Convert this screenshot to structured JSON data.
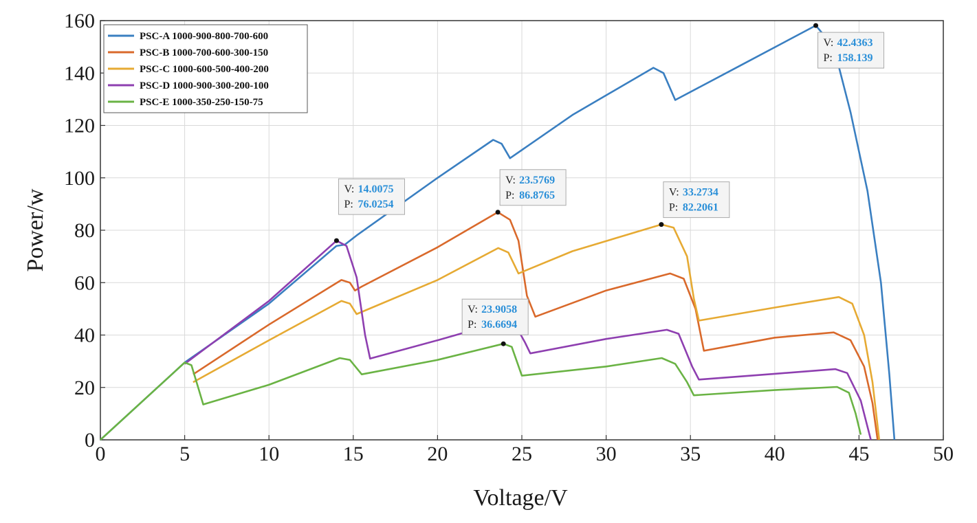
{
  "chart_data": {
    "type": "line",
    "xlabel": "Voltage/V",
    "ylabel": "Power/w",
    "xlim": [
      0,
      50
    ],
    "ylim": [
      0,
      160
    ],
    "xticks": [
      0,
      5,
      10,
      15,
      20,
      25,
      30,
      35,
      40,
      45,
      50
    ],
    "yticks": [
      0,
      20,
      40,
      60,
      80,
      100,
      120,
      140,
      160
    ],
    "grid": true,
    "legend_position": "top-left",
    "series": [
      {
        "name": "PSC-A 1000-900-800-700-600",
        "color": "#3a7fc1",
        "points": [
          [
            0,
            0
          ],
          [
            5,
            29.5
          ],
          [
            10,
            52
          ],
          [
            14,
            74
          ],
          [
            14.5,
            74.5
          ],
          [
            15.2,
            78
          ],
          [
            20,
            100
          ],
          [
            23.3,
            114.5
          ],
          [
            23.8,
            113
          ],
          [
            24.3,
            107.5
          ],
          [
            28,
            124
          ],
          [
            32.8,
            142
          ],
          [
            33.4,
            140
          ],
          [
            34.1,
            129.7
          ],
          [
            38,
            143
          ],
          [
            42.4363,
            158.139
          ],
          [
            43.5,
            150
          ],
          [
            44.5,
            125
          ],
          [
            45.5,
            95
          ],
          [
            46.3,
            60
          ],
          [
            46.8,
            25
          ],
          [
            47.1,
            0
          ]
        ]
      },
      {
        "name": "PSC-B 1000-700-600-300-150",
        "color": "#d9692b",
        "points": [
          [
            5.5,
            25
          ],
          [
            10,
            44
          ],
          [
            14.3,
            61
          ],
          [
            14.8,
            60
          ],
          [
            15.1,
            57
          ],
          [
            15.5,
            58.5
          ],
          [
            20,
            73.5
          ],
          [
            23.5769,
            86.8765
          ],
          [
            24.3,
            84
          ],
          [
            24.8,
            76
          ],
          [
            25.3,
            55
          ],
          [
            25.8,
            47
          ],
          [
            30,
            57
          ],
          [
            33.8,
            63.5
          ],
          [
            34.6,
            61.5
          ],
          [
            35.3,
            50
          ],
          [
            35.8,
            34
          ],
          [
            40,
            39
          ],
          [
            43.5,
            41
          ],
          [
            44.5,
            38
          ],
          [
            45.3,
            28
          ],
          [
            45.8,
            14
          ],
          [
            46.1,
            0
          ]
        ]
      },
      {
        "name": "PSC-C 1000-600-500-400-200",
        "color": "#e6aa33",
        "points": [
          [
            5.5,
            22
          ],
          [
            10,
            38
          ],
          [
            14.3,
            53
          ],
          [
            14.8,
            52
          ],
          [
            15.2,
            48
          ],
          [
            20,
            61
          ],
          [
            23.6,
            73.2
          ],
          [
            24.2,
            71.5
          ],
          [
            24.8,
            63.5
          ],
          [
            28,
            72
          ],
          [
            33.2734,
            82.2061
          ],
          [
            34,
            81
          ],
          [
            34.8,
            70
          ],
          [
            35.2,
            54
          ],
          [
            35.5,
            45.5
          ],
          [
            40,
            50.5
          ],
          [
            43.8,
            54.5
          ],
          [
            44.6,
            52
          ],
          [
            45.3,
            40
          ],
          [
            45.8,
            22
          ],
          [
            46.2,
            0
          ]
        ]
      },
      {
        "name": "PSC-D 1000-900-300-200-100",
        "color": "#8e3fb0",
        "points": [
          [
            5,
            29
          ],
          [
            10,
            53
          ],
          [
            14.0075,
            76.0254
          ],
          [
            14.6,
            74
          ],
          [
            15.2,
            62
          ],
          [
            15.7,
            40
          ],
          [
            16,
            31
          ],
          [
            20,
            38
          ],
          [
            23.9,
            45.2
          ],
          [
            24.6,
            44
          ],
          [
            25.2,
            37
          ],
          [
            25.5,
            33
          ],
          [
            30,
            38.5
          ],
          [
            33.6,
            42
          ],
          [
            34.3,
            40.5
          ],
          [
            35.1,
            28
          ],
          [
            35.5,
            23
          ],
          [
            40,
            25.2
          ],
          [
            43.6,
            27
          ],
          [
            44.3,
            25.5
          ],
          [
            45.1,
            15
          ],
          [
            45.7,
            0
          ]
        ]
      },
      {
        "name": "PSC-E 1000-350-250-150-75",
        "color": "#6ab344",
        "points": [
          [
            0,
            0
          ],
          [
            5,
            29.5
          ],
          [
            5.4,
            28.5
          ],
          [
            5.8,
            20
          ],
          [
            6.1,
            13.5
          ],
          [
            10,
            21
          ],
          [
            14.2,
            31.2
          ],
          [
            14.8,
            30.5
          ],
          [
            15.5,
            25
          ],
          [
            20,
            30.5
          ],
          [
            23.9058,
            36.6694
          ],
          [
            24.4,
            35.5
          ],
          [
            25,
            24.5
          ],
          [
            30,
            28
          ],
          [
            33.3,
            31.2
          ],
          [
            34.1,
            29
          ],
          [
            34.8,
            22
          ],
          [
            35.2,
            17
          ],
          [
            40,
            19
          ],
          [
            43.7,
            20.2
          ],
          [
            44.4,
            18
          ],
          [
            44.8,
            10
          ],
          [
            45.1,
            2
          ]
        ]
      }
    ],
    "annotations": [
      {
        "v_label": "V:",
        "v": "42.4363",
        "p_label": "P:",
        "p": "158.139",
        "x": 42.4363,
        "y": 158.139
      },
      {
        "v_label": "V:",
        "v": "14.0075",
        "p_label": "P:",
        "p": "76.0254",
        "x": 14.0075,
        "y": 76.0254
      },
      {
        "v_label": "V:",
        "v": "23.5769",
        "p_label": "P:",
        "p": "86.8765",
        "x": 23.5769,
        "y": 86.8765
      },
      {
        "v_label": "V:",
        "v": "33.2734",
        "p_label": "P:",
        "p": "82.2061",
        "x": 33.2734,
        "y": 82.2061
      },
      {
        "v_label": "V:",
        "v": "23.9058",
        "p_label": "P:",
        "p": "36.6694",
        "x": 23.9058,
        "y": 36.6694
      }
    ]
  }
}
